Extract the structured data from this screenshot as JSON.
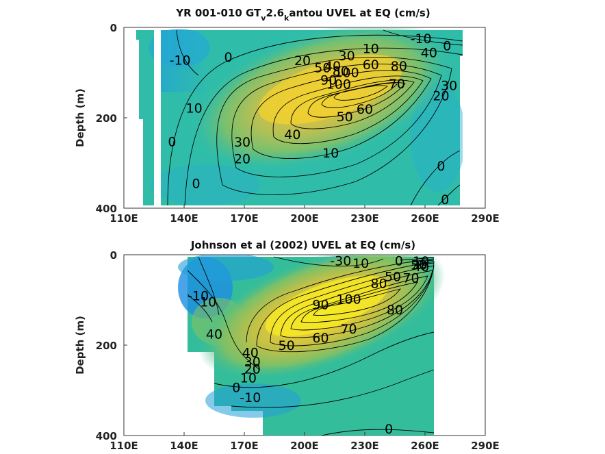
{
  "chart_data": [
    {
      "type": "heatmap",
      "title": "YR 001-010 GT",
      "title_sub1": "v",
      "title_mid": "2.6",
      "title_sub2": "k",
      "title_end": "antou UVEL at EQ (cm/s)",
      "xlabel": "",
      "ylabel": "Depth (m)",
      "xlim": [
        110,
        290
      ],
      "ylim": [
        0,
        400
      ],
      "y_reversed": true,
      "x_ticks": [
        "110E",
        "140E",
        "170E",
        "200E",
        "230E",
        "260E",
        "290E"
      ],
      "y_ticks": [
        "0",
        "200",
        "400"
      ],
      "data_extent_lon": [
        125,
        280
      ],
      "core": {
        "lon": 222,
        "depth": 120,
        "max_speed": 100
      },
      "contour_levels": [
        -10,
        0,
        10,
        20,
        30,
        40,
        50,
        60,
        70,
        80,
        90,
        100
      ],
      "contour_labels": [
        {
          "text": "-10",
          "lon": 138,
          "depth": 72
        },
        {
          "text": "0",
          "lon": 162,
          "depth": 65
        },
        {
          "text": "20",
          "lon": 199,
          "depth": 73
        },
        {
          "text": "30",
          "lon": 221,
          "depth": 62
        },
        {
          "text": "10",
          "lon": 233,
          "depth": 46
        },
        {
          "text": "-10",
          "lon": 258,
          "depth": 24
        },
        {
          "text": "0",
          "lon": 271,
          "depth": 40
        },
        {
          "text": "40",
          "lon": 262,
          "depth": 55
        },
        {
          "text": "50",
          "lon": 209,
          "depth": 89
        },
        {
          "text": "40",
          "lon": 214,
          "depth": 85
        },
        {
          "text": "80",
          "lon": 218,
          "depth": 96
        },
        {
          "text": "100",
          "lon": 221,
          "depth": 99
        },
        {
          "text": "60",
          "lon": 233,
          "depth": 82
        },
        {
          "text": "80",
          "lon": 247,
          "depth": 85
        },
        {
          "text": "90",
          "lon": 212,
          "depth": 116
        },
        {
          "text": "100",
          "lon": 217,
          "depth": 125
        },
        {
          "text": "70",
          "lon": 246,
          "depth": 124
        },
        {
          "text": "30",
          "lon": 272,
          "depth": 128
        },
        {
          "text": "20",
          "lon": 268,
          "depth": 151
        },
        {
          "text": "10",
          "lon": 145,
          "depth": 178
        },
        {
          "text": "60",
          "lon": 230,
          "depth": 180
        },
        {
          "text": "50",
          "lon": 220,
          "depth": 197
        },
        {
          "text": "40",
          "lon": 194,
          "depth": 236
        },
        {
          "text": "30",
          "lon": 169,
          "depth": 253
        },
        {
          "text": "10",
          "lon": 213,
          "depth": 277
        },
        {
          "text": "0",
          "lon": 134,
          "depth": 252
        },
        {
          "text": "20",
          "lon": 169,
          "depth": 290
        },
        {
          "text": "0",
          "lon": 146,
          "depth": 345
        },
        {
          "text": "0",
          "lon": 268,
          "depth": 306
        },
        {
          "text": "0",
          "lon": 270,
          "depth": 380
        }
      ]
    },
    {
      "type": "heatmap",
      "title": "Johnson et al (2002) UVEL at EQ (cm/s)",
      "xlabel": "",
      "ylabel": "Depth (m)",
      "xlim": [
        110,
        290
      ],
      "ylim": [
        0,
        400
      ],
      "y_reversed": true,
      "x_ticks": [
        "110E",
        "140E",
        "170E",
        "200E",
        "230E",
        "260E",
        "290E"
      ],
      "y_ticks": [
        "0",
        "200",
        "400"
      ],
      "data_extent_lon": [
        143,
        265
      ],
      "core": {
        "lon": 222,
        "depth": 110,
        "max_speed": 100
      },
      "contour_levels": [
        -30,
        -10,
        0,
        10,
        20,
        30,
        40,
        50,
        60,
        70,
        80,
        90,
        100
      ],
      "contour_labels": [
        {
          "text": "-30",
          "lon": 218,
          "depth": 13
        },
        {
          "text": "10",
          "lon": 228,
          "depth": 18
        },
        {
          "text": "0",
          "lon": 247,
          "depth": 13
        },
        {
          "text": "10",
          "lon": 258,
          "depth": 14
        },
        {
          "text": "50",
          "lon": 257,
          "depth": 22
        },
        {
          "text": "40",
          "lon": 258,
          "depth": 26
        },
        {
          "text": "50",
          "lon": 244,
          "depth": 48
        },
        {
          "text": "70",
          "lon": 253,
          "depth": 51
        },
        {
          "text": "80",
          "lon": 237,
          "depth": 63
        },
        {
          "text": "-10",
          "lon": 147,
          "depth": 90
        },
        {
          "text": "10",
          "lon": 152,
          "depth": 104
        },
        {
          "text": "90",
          "lon": 208,
          "depth": 110
        },
        {
          "text": "100",
          "lon": 222,
          "depth": 98
        },
        {
          "text": "80",
          "lon": 245,
          "depth": 121
        },
        {
          "text": "70",
          "lon": 222,
          "depth": 164
        },
        {
          "text": "60",
          "lon": 208,
          "depth": 183
        },
        {
          "text": "50",
          "lon": 191,
          "depth": 200
        },
        {
          "text": "40",
          "lon": 155,
          "depth": 175
        },
        {
          "text": "40",
          "lon": 173,
          "depth": 216
        },
        {
          "text": "30",
          "lon": 174,
          "depth": 236
        },
        {
          "text": "20",
          "lon": 174,
          "depth": 252
        },
        {
          "text": "10",
          "lon": 172,
          "depth": 272
        },
        {
          "text": "0",
          "lon": 166,
          "depth": 293
        },
        {
          "text": "-10",
          "lon": 173,
          "depth": 315
        },
        {
          "text": "0",
          "lon": 242,
          "depth": 385
        }
      ]
    }
  ]
}
